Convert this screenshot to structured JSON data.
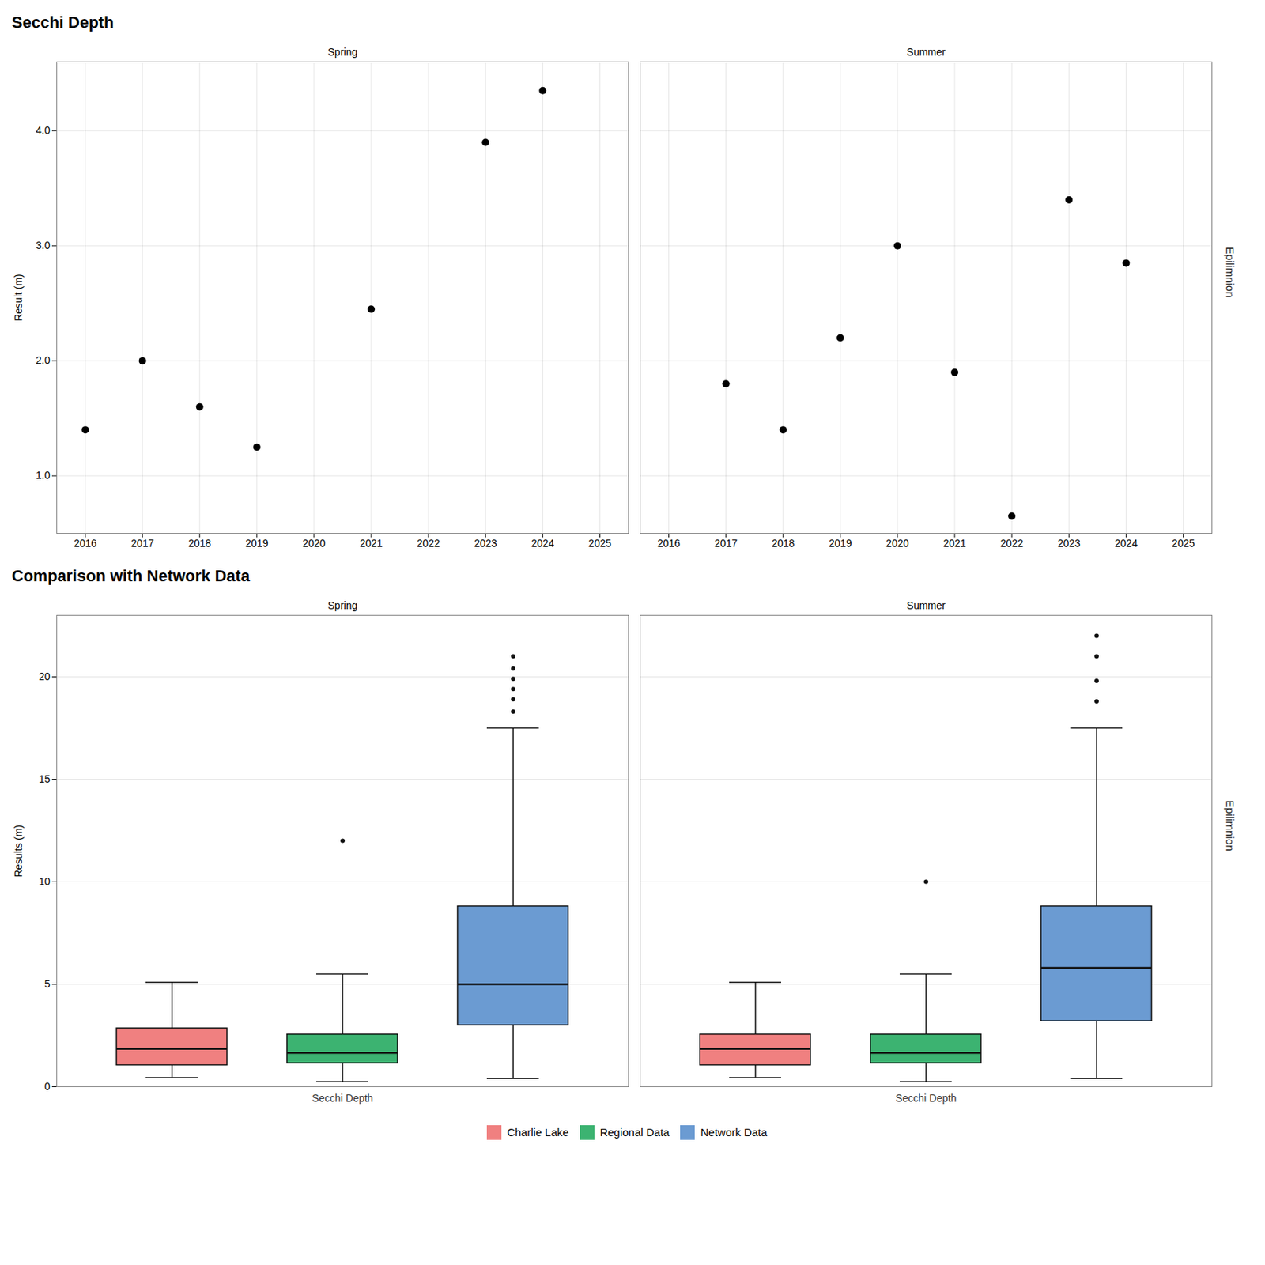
{
  "chart_data": [
    {
      "type": "scatter",
      "title": "Secchi Depth",
      "ylabel": "Result (m)",
      "annotations": [
        "Epilimnion"
      ],
      "series": [
        {
          "name": "Spring",
          "color": "black",
          "x": [
            2016,
            2017,
            2018,
            2019,
            2021,
            2023,
            2024
          ],
          "values": [
            1.4,
            2.0,
            1.6,
            1.25,
            2.45,
            3.9,
            4.35
          ]
        },
        {
          "name": "Summer",
          "color": "black",
          "x": [
            2017,
            2018,
            2019,
            2020,
            2021,
            2022,
            2023,
            2024
          ],
          "values": [
            1.8,
            1.4,
            2.2,
            3.0,
            1.9,
            0.65,
            3.4,
            2.85
          ]
        }
      ],
      "xlim": [
        2015.5,
        2025.5
      ],
      "xticks": [
        2016,
        2017,
        2018,
        2019,
        2020,
        2021,
        2022,
        2023,
        2024,
        2025
      ],
      "ylim": [
        0.5,
        4.6
      ],
      "yticks": [
        1,
        2,
        3,
        4
      ],
      "grid": true
    },
    {
      "type": "box",
      "title": "Comparison with Network Data",
      "ylabel": "Results (m)",
      "annotations": [
        "Epilimnion"
      ],
      "panels": [
        "Spring",
        "Summer"
      ],
      "categories": [
        "Secchi Depth"
      ],
      "series": [
        {
          "name": "Charlie Lake",
          "color": "#F08080",
          "values": [
            {
              "q1": 1.05,
              "median": 1.85,
              "q3": 2.85,
              "whisker_low": 0.45,
              "whisker_high": 5.1,
              "outliers": []
            },
            {
              "q1": 1.05,
              "median": 1.85,
              "q3": 2.55,
              "whisker_low": 0.45,
              "whisker_high": 5.1,
              "outliers": []
            }
          ]
        },
        {
          "name": "Regional Data",
          "color": "#3CB371",
          "values": [
            {
              "q1": 1.15,
              "median": 1.65,
              "q3": 2.55,
              "whisker_low": 0.25,
              "whisker_high": 5.5,
              "outliers": [
                12.0
              ]
            },
            {
              "q1": 1.15,
              "median": 1.65,
              "q3": 2.55,
              "whisker_low": 0.25,
              "whisker_high": 5.5,
              "outliers": [
                10.0
              ]
            }
          ]
        },
        {
          "name": "Network Data",
          "color": "#6B9BD2",
          "values": [
            {
              "q1": 3.0,
              "median": 5.0,
              "q3": 8.8,
              "whisker_low": 0.4,
              "whisker_high": 17.5,
              "outliers": [
                18.3,
                18.9,
                19.4,
                19.9,
                20.4,
                21.0
              ]
            },
            {
              "q1": 3.2,
              "median": 5.8,
              "q3": 8.8,
              "whisker_low": 0.4,
              "whisker_high": 17.5,
              "outliers": [
                18.8,
                19.8,
                21.0,
                22.0
              ]
            }
          ]
        }
      ],
      "ylim": [
        0,
        23
      ],
      "yticks": [
        0,
        5,
        10,
        15,
        20
      ],
      "grid": true,
      "legend": "bottom"
    }
  ]
}
